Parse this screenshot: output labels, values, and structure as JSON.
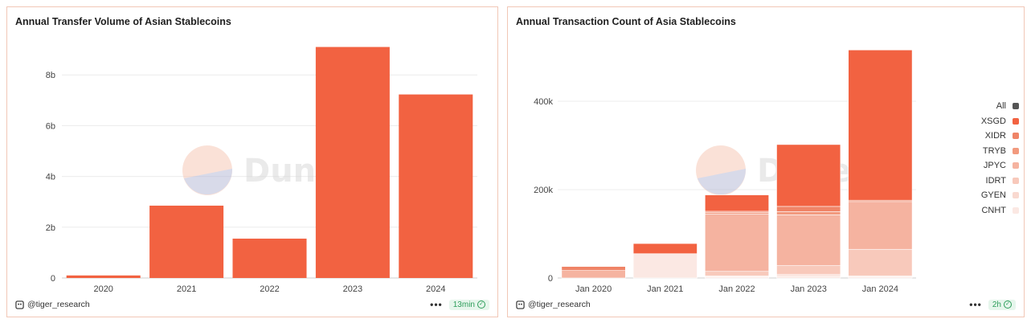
{
  "watermark": "Dune",
  "panels": [
    {
      "title": "Annual Transfer Volume of Asian Stablecoins",
      "author": "@tiger_research",
      "refresh": "13min"
    },
    {
      "title": "Annual Transaction Count of Asia Stablecoins",
      "author": "@tiger_research",
      "refresh": "2h"
    }
  ],
  "more_label": "•••",
  "colors": {
    "bar": "#f26241",
    "grid": "#ececec",
    "XSGD": "#f26241",
    "XIDR": "#ef8467",
    "TRYB": "#f29a7e",
    "JPYC": "#f5b3a0",
    "IDRT": "#f8c9bb",
    "GYEN": "#f9d9d0",
    "CNHT": "#fbe8e3",
    "All": "#555555"
  },
  "chart_data": [
    {
      "type": "bar",
      "title": "Annual Transfer Volume of Asian Stablecoins",
      "categories": [
        "2020",
        "2021",
        "2022",
        "2023",
        "2024"
      ],
      "values": [
        100000000,
        2850000000,
        1550000000,
        9100000000,
        7230000000
      ],
      "ylim": [
        0,
        9400000000
      ],
      "yticks": [
        0,
        2000000000,
        4000000000,
        6000000000,
        8000000000
      ],
      "ytick_labels": [
        "0",
        "2b",
        "4b",
        "6b",
        "8b"
      ],
      "grid": true
    },
    {
      "type": "bar",
      "stacked": true,
      "title": "Annual Transaction Count of Asia Stablecoins",
      "categories": [
        "Jan 2020",
        "Jan 2021",
        "Jan 2022",
        "Jan 2023",
        "Jan 2024"
      ],
      "ylim": [
        0,
        540000
      ],
      "yticks": [
        0,
        200000,
        400000
      ],
      "ytick_labels": [
        "0",
        "200k",
        "400k"
      ],
      "grid": true,
      "legend_position": "right",
      "legend": [
        "All",
        "XSGD",
        "XIDR",
        "TRYB",
        "JPYC",
        "IDRT",
        "GYEN",
        "CNHT"
      ],
      "series": [
        {
          "name": "CNHT",
          "values": [
            0,
            55000,
            3000,
            5000,
            3000
          ]
        },
        {
          "name": "GYEN",
          "values": [
            0,
            0,
            2000,
            3000,
            2000
          ]
        },
        {
          "name": "IDRT",
          "values": [
            0,
            0,
            10000,
            20000,
            60000
          ]
        },
        {
          "name": "JPYC",
          "values": [
            17000,
            0,
            130000,
            115000,
            108000
          ]
        },
        {
          "name": "TRYB",
          "values": [
            0,
            0,
            3000,
            7000,
            0
          ]
        },
        {
          "name": "XIDR",
          "values": [
            9000,
            0,
            3000,
            12000,
            3000
          ]
        },
        {
          "name": "XSGD",
          "values": [
            0,
            23000,
            37000,
            140000,
            340000
          ]
        }
      ]
    }
  ]
}
